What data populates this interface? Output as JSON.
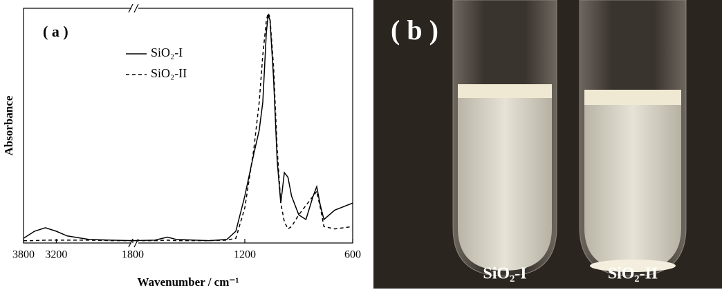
{
  "chart_data": {
    "type": "line",
    "panel_label": "( a )",
    "x_label": "Wavenumber / cm⁻¹",
    "y_label": "Absorbance",
    "x": [
      3800,
      3600,
      3400,
      3200,
      3000,
      2600,
      2200,
      1800,
      1700,
      1630,
      1580,
      1400,
      1300,
      1250,
      1200,
      1150,
      1120,
      1100,
      1080,
      1070,
      1060,
      1040,
      1020,
      1000,
      980,
      960,
      940,
      900,
      860,
      820,
      800,
      780,
      760,
      700,
      600
    ],
    "series": [
      {
        "name": "SiO₂-I",
        "color": "#000000",
        "dash": "solid",
        "values": [
          0.02,
          0.05,
          0.065,
          0.05,
          0.03,
          0.015,
          0.012,
          0.01,
          0.012,
          0.025,
          0.015,
          0.01,
          0.015,
          0.05,
          0.2,
          0.38,
          0.48,
          0.6,
          0.9,
          0.97,
          0.95,
          0.7,
          0.35,
          0.17,
          0.3,
          0.28,
          0.2,
          0.12,
          0.1,
          0.2,
          0.24,
          0.16,
          0.1,
          0.14,
          0.17
        ]
      },
      {
        "name": "SiO₂-II",
        "color": "#000000",
        "dash": "dashed",
        "values": [
          0.01,
          0.01,
          0.012,
          0.012,
          0.012,
          0.012,
          0.01,
          0.01,
          0.01,
          0.012,
          0.01,
          0.01,
          0.012,
          0.02,
          0.15,
          0.4,
          0.6,
          0.8,
          0.95,
          0.98,
          0.96,
          0.75,
          0.4,
          0.17,
          0.09,
          0.06,
          0.07,
          0.12,
          0.16,
          0.2,
          0.22,
          0.15,
          0.07,
          0.06,
          0.07
        ]
      }
    ],
    "x_segments": [
      [
        3800,
        1800
      ],
      [
        1800,
        600
      ]
    ],
    "xticks": [
      3800,
      3200,
      1800,
      1200,
      600
    ],
    "ylim": [
      0,
      1
    ],
    "legend": "top-left",
    "grid": false
  },
  "photo": {
    "panel_label": "( b )",
    "samples": [
      "SiO₂-I",
      "SiO₂-II"
    ]
  }
}
